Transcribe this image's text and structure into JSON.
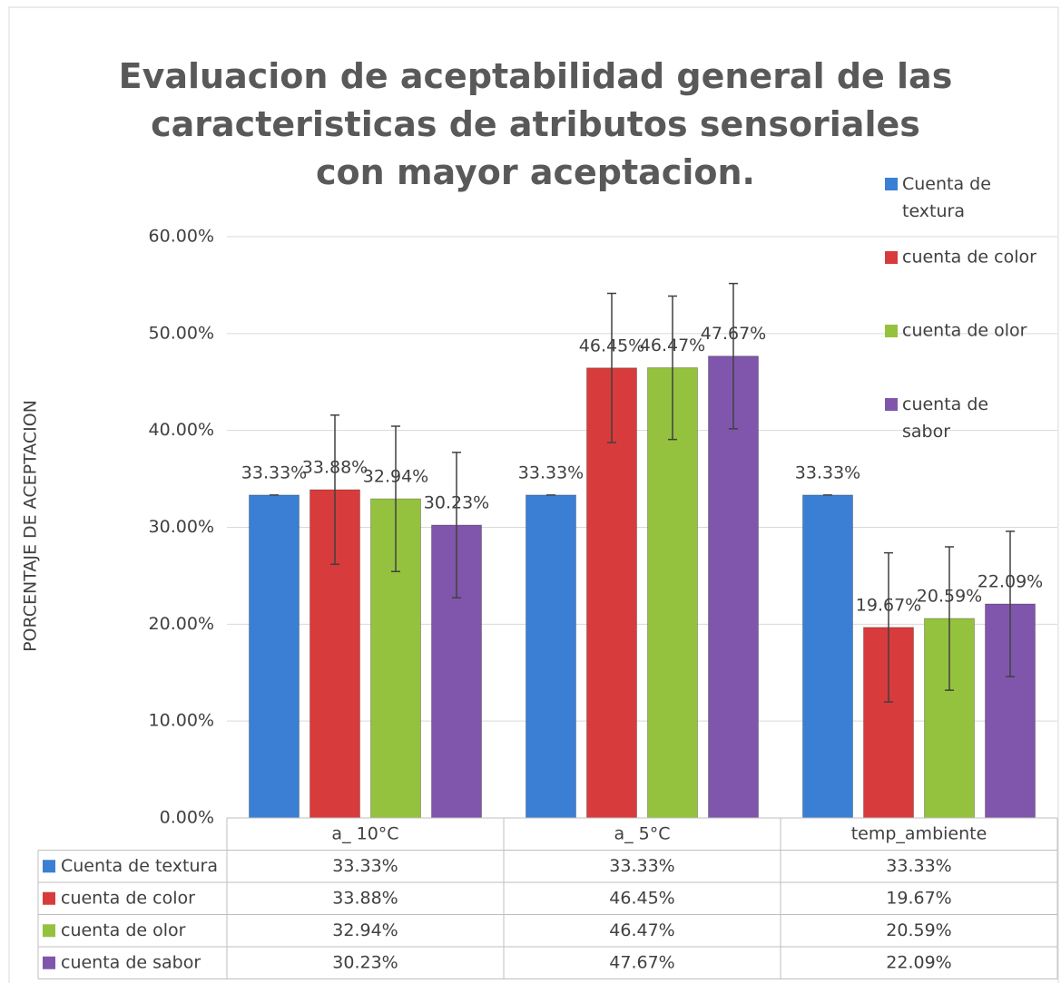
{
  "chart_data": {
    "type": "bar",
    "title": "Evaluacion de aceptabilidad general de las caracteristicas de atributos sensoriales con mayor aceptacion.",
    "y_label": "PORCENTAJE  DE  ACEPTACION",
    "categories": [
      "a_ 10°C",
      "a_ 5°C",
      "temp_ambiente"
    ],
    "series": [
      {
        "name": "Cuenta de textura",
        "color": "#3a7fd4",
        "values": [
          33.33,
          33.33,
          33.33
        ],
        "value_labels": [
          "33.33%",
          "33.33%",
          "33.33%"
        ],
        "errors": [
          0,
          0,
          0
        ]
      },
      {
        "name": "cuenta de color",
        "color": "#d83b3b",
        "values": [
          33.88,
          46.45,
          19.67
        ],
        "value_labels": [
          "33.88%",
          "46.45%",
          "19.67%"
        ],
        "errors": [
          7.7,
          7.7,
          7.7
        ]
      },
      {
        "name": "cuenta de olor",
        "color": "#94c23e",
        "values": [
          32.94,
          46.47,
          20.59
        ],
        "value_labels": [
          "32.94%",
          "46.47%",
          "20.59%"
        ],
        "errors": [
          7.5,
          7.4,
          7.4
        ]
      },
      {
        "name": "cuenta de sabor",
        "color": "#7f56ab",
        "values": [
          30.23,
          47.67,
          22.09
        ],
        "value_labels": [
          "30.23%",
          "47.67%",
          "22.09%"
        ],
        "errors": [
          7.5,
          7.5,
          7.5
        ]
      }
    ],
    "ylim": [
      0,
      60
    ],
    "yticks": [
      {
        "value": 0,
        "label": "0.00%"
      },
      {
        "value": 10,
        "label": "10.00%"
      },
      {
        "value": 20,
        "label": "20.00%"
      },
      {
        "value": 30,
        "label": "30.00%"
      },
      {
        "value": 40,
        "label": "40.00%"
      },
      {
        "value": 50,
        "label": "50.00%"
      },
      {
        "value": 60,
        "label": "60.00%"
      }
    ],
    "grid": true,
    "legend": "right",
    "data_table": true
  }
}
